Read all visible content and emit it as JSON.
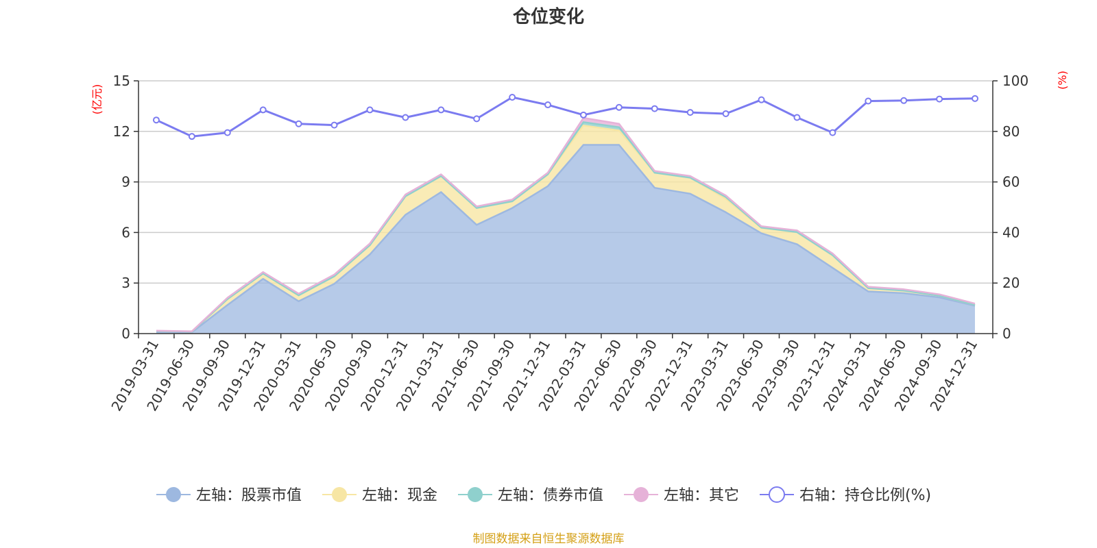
{
  "chart_data": {
    "type": "area",
    "title": "仓位变化",
    "left_axis": {
      "unit_label": "(亿元)",
      "ylim": [
        0,
        15
      ],
      "ticks": [
        0,
        3,
        6,
        9,
        12,
        15
      ]
    },
    "right_axis": {
      "unit_label": "(%)",
      "ylim": [
        0,
        100
      ],
      "ticks": [
        0,
        20,
        40,
        60,
        80,
        100
      ]
    },
    "categories": [
      "2019-03-31",
      "2019-06-30",
      "2019-09-30",
      "2019-12-31",
      "2020-03-31",
      "2020-06-30",
      "2020-09-30",
      "2020-12-31",
      "2021-03-31",
      "2021-06-30",
      "2021-09-30",
      "2021-12-31",
      "2022-03-31",
      "2022-06-30",
      "2022-09-30",
      "2022-12-31",
      "2023-03-31",
      "2023-06-30",
      "2023-09-30",
      "2023-12-31",
      "2024-03-31",
      "2024-06-30",
      "2024-09-30",
      "2024-12-31"
    ],
    "stacked_series": [
      {
        "name": "左轴：股票市值",
        "axis": "left",
        "values": [
          0.1,
          0.08,
          1.7,
          3.25,
          1.92,
          2.95,
          4.7,
          7.05,
          8.4,
          6.45,
          7.45,
          8.75,
          11.2,
          11.2,
          8.65,
          8.3,
          7.2,
          5.95,
          5.3,
          3.9,
          2.5,
          2.4,
          2.15,
          1.65
        ]
      },
      {
        "name": "左轴：现金",
        "axis": "left",
        "values": [
          0.05,
          0.04,
          0.35,
          0.32,
          0.35,
          0.45,
          0.55,
          1.1,
          0.95,
          1.0,
          0.4,
          0.7,
          1.15,
          0.85,
          0.9,
          0.95,
          0.8,
          0.32,
          0.72,
          0.75,
          0.2,
          0.15,
          0.1,
          0.05
        ]
      },
      {
        "name": "左轴：债券市值",
        "axis": "left",
        "values": [
          0,
          0,
          0,
          0,
          0,
          0,
          0,
          0,
          0,
          0,
          0,
          0,
          0.2,
          0.2,
          0,
          0,
          0.1,
          0.02,
          0,
          0,
          0,
          0,
          0,
          0
        ]
      },
      {
        "name": "左轴：其它",
        "axis": "left",
        "values": [
          0.02,
          0.02,
          0.08,
          0.08,
          0.1,
          0.1,
          0.1,
          0.1,
          0.1,
          0.1,
          0.1,
          0.1,
          0.25,
          0.2,
          0.1,
          0.1,
          0.1,
          0.08,
          0.1,
          0.1,
          0.08,
          0.08,
          0.08,
          0.08
        ]
      }
    ],
    "line_series": {
      "name": "右轴：持仓比例(%)",
      "axis": "right",
      "values": [
        84.5,
        78.0,
        79.5,
        88.5,
        83.0,
        82.5,
        88.5,
        85.5,
        88.5,
        85.0,
        93.5,
        90.5,
        86.5,
        89.5,
        89.0,
        87.5,
        87.0,
        92.5,
        85.5,
        79.5,
        92.0,
        92.2,
        92.8,
        93.0
      ]
    },
    "colors": {
      "stock": "#9db8e0",
      "cash": "#f7e6a4",
      "bond": "#8fd0cd",
      "other": "#e6b2d8",
      "ratio": "#7b7bf0",
      "left_unit": "#ff0000",
      "right_unit": "#ff0000",
      "grid": "#cccccc",
      "axis": "#333333",
      "source": "#d4a017"
    },
    "legend_position": "bottom",
    "grid": true
  },
  "legend": {
    "items": [
      {
        "label": "左轴：股票市值",
        "icon": "filled-circle-icon",
        "color": "#9db8e0"
      },
      {
        "label": "左轴：现金",
        "icon": "filled-circle-icon",
        "color": "#f7e6a4"
      },
      {
        "label": "左轴：债券市值",
        "icon": "filled-circle-icon",
        "color": "#8fd0cd"
      },
      {
        "label": "左轴：其它",
        "icon": "filled-circle-icon",
        "color": "#e6b2d8"
      },
      {
        "label": "右轴：持仓比例(%)",
        "icon": "hollow-circle-icon",
        "color": "#7b7bf0"
      }
    ]
  },
  "footer": {
    "source_text": "制图数据来自恒生聚源数据库"
  }
}
